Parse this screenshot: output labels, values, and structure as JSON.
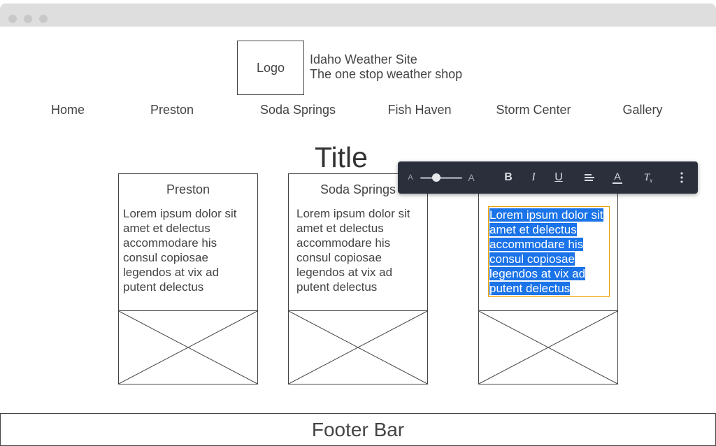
{
  "header": {
    "logo": "Logo",
    "site_title": "Idaho Weather Site",
    "site_subtitle": "The one stop weather shop"
  },
  "nav": {
    "items": [
      {
        "label": "Home"
      },
      {
        "label": "Preston"
      },
      {
        "label": "Soda Springs"
      },
      {
        "label": "Fish Haven"
      },
      {
        "label": "Storm Center"
      },
      {
        "label": "Gallery"
      }
    ]
  },
  "main": {
    "title": "Title",
    "cards": [
      {
        "heading": "Preston",
        "text": "Lorem ipsum dolor sit amet et delectus accommodare his consul copiosae legendos at vix ad putent delectus"
      },
      {
        "heading": "Soda Springs",
        "text": "Lorem ipsum dolor sit amet et delectus accommodare his consul copiosae legendos at vix ad putent delectus"
      },
      {
        "heading": "",
        "text": "Lorem ipsum dolor sit amet et delectus accommodare his consul copiosae legendos at vix ad putent delectus"
      }
    ]
  },
  "toolbar": {
    "font_size_min_glyph": "A",
    "font_size_max_glyph": "A",
    "font_size_level": 0.4,
    "buttons": [
      {
        "icon": "bold-icon",
        "glyph": "B"
      },
      {
        "icon": "italic-icon",
        "glyph": "I"
      },
      {
        "icon": "underline-icon",
        "glyph": "U"
      },
      {
        "icon": "align-icon"
      },
      {
        "icon": "text-color-icon",
        "glyph": "A"
      },
      {
        "icon": "clear-formatting-icon",
        "glyph": "T"
      },
      {
        "icon": "more-options-icon"
      }
    ]
  },
  "footer": {
    "label": "Footer Bar"
  },
  "colors": {
    "selection": "#1a73e8",
    "selection_outline": "#f0a000",
    "toolbar_bg": "#2a2f3b"
  }
}
